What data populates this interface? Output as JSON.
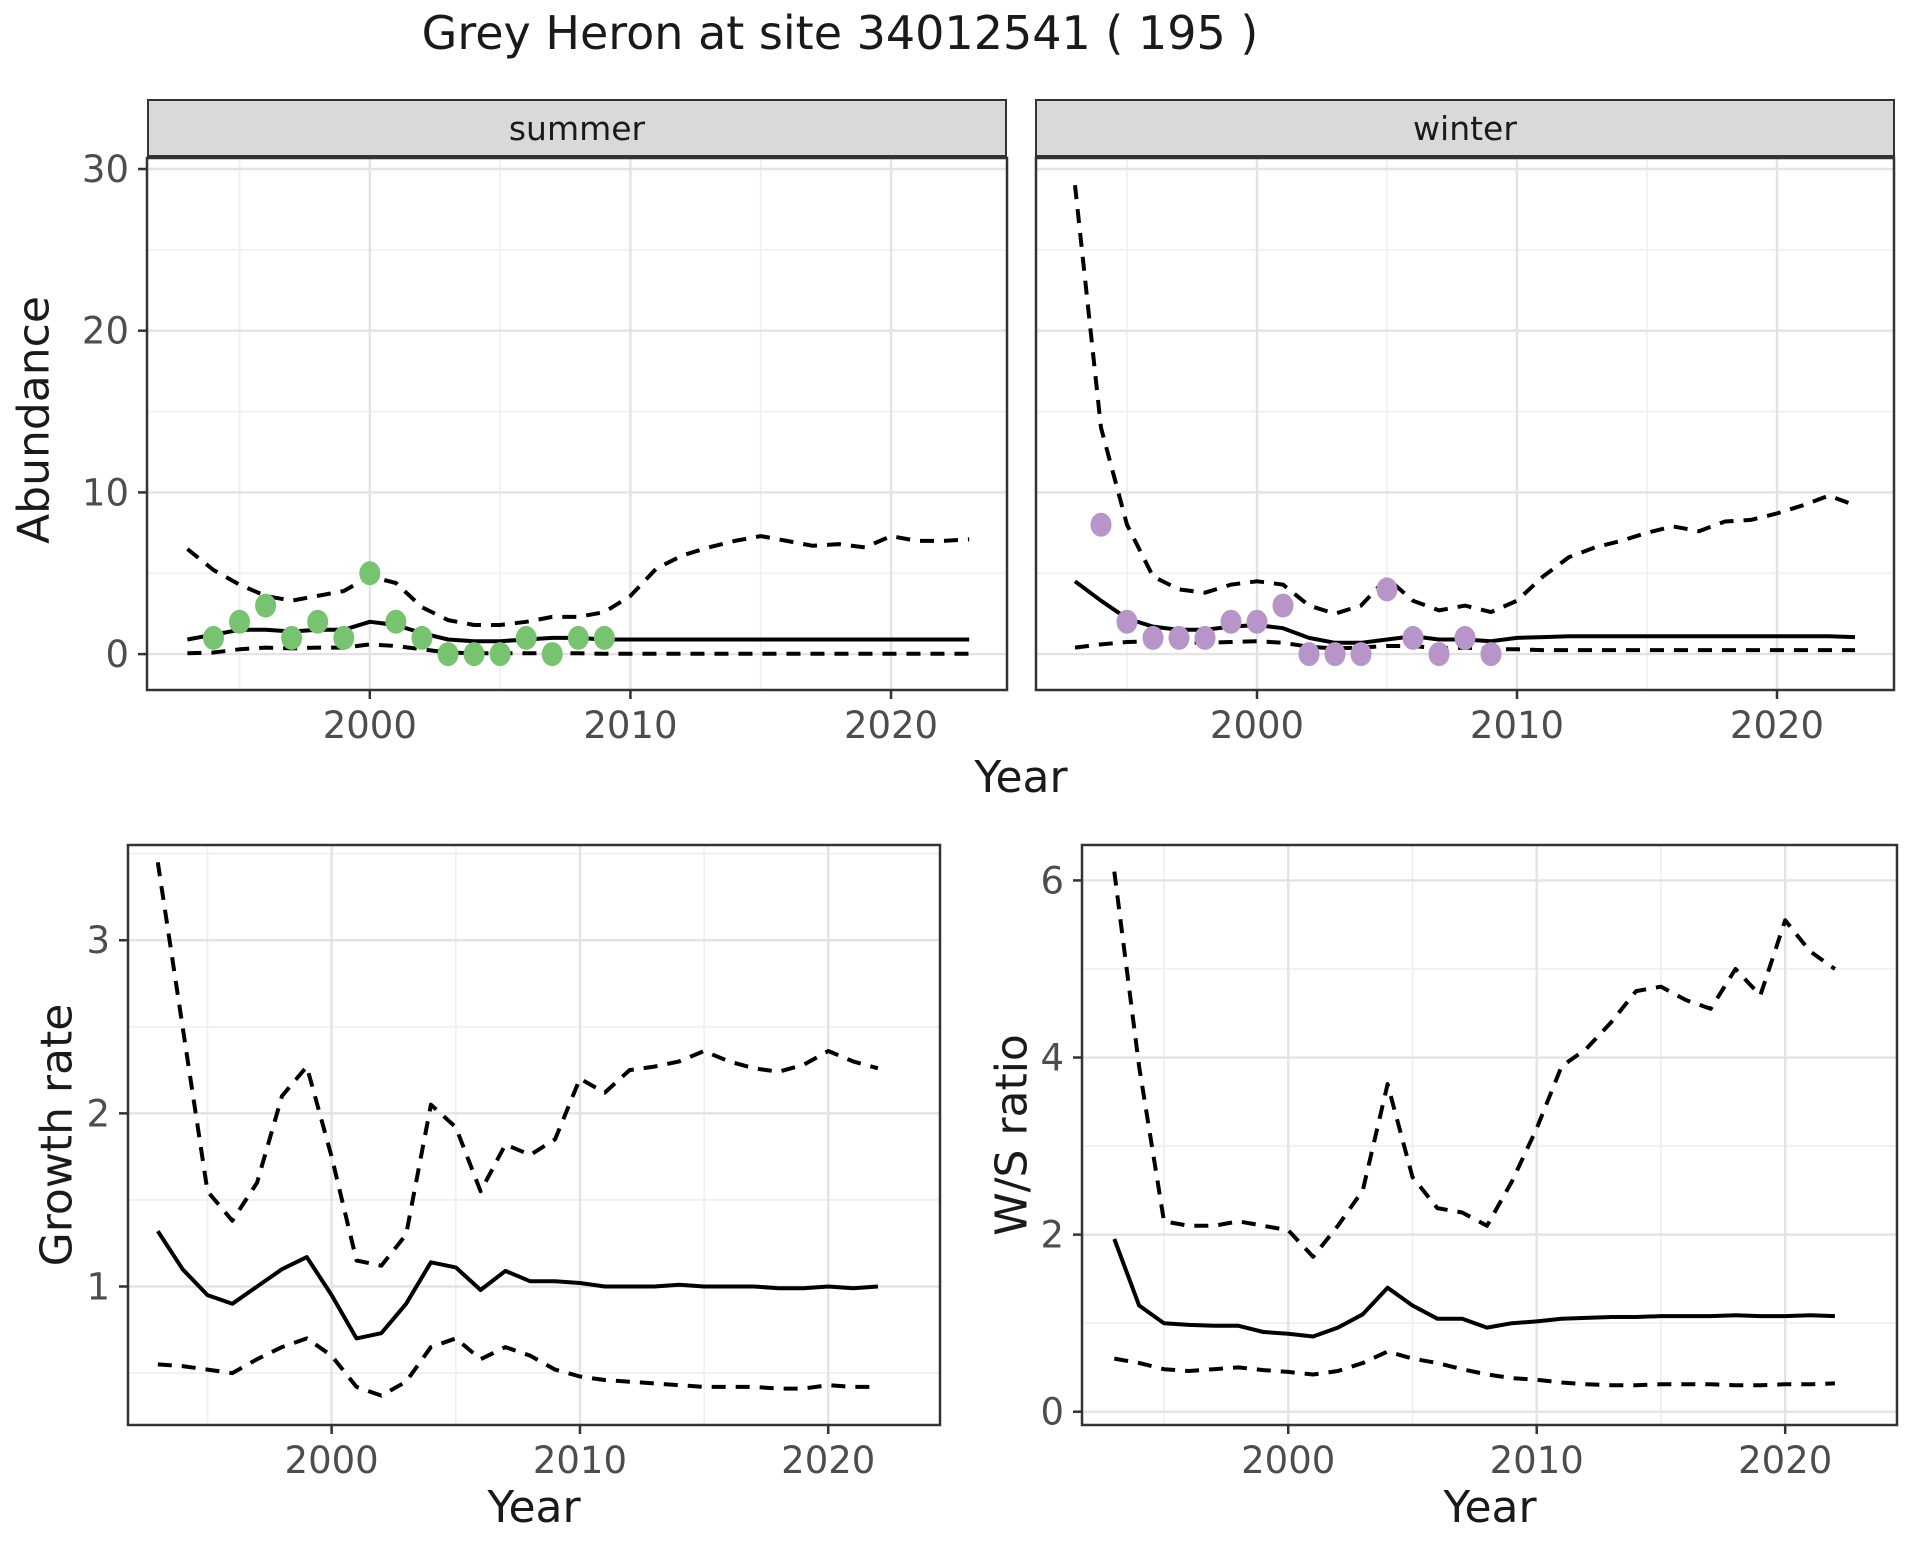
{
  "title": "Grey Heron at site 34012541 ( 195 )",
  "labels": {
    "y_abundance": "Abundance",
    "x_year": "Year",
    "y_growth": "Growth rate",
    "y_ws": "W/S ratio"
  },
  "colors": {
    "line": "#000000",
    "summer_obs": "#78c36f",
    "winter_obs": "#b795c8",
    "strip_bg": "#d9d9d9",
    "panel_border": "#333333",
    "grid_major": "#e3e3e3",
    "grid_minor": "#f0f0f0",
    "tick_text": "#4d4d4d"
  },
  "chart_data": [
    {
      "type": "line",
      "facet_label": "summer",
      "ylabel": "Abundance",
      "xlabel": "Year",
      "x_domain": [
        1991.45,
        2024.45
      ],
      "y_domain": [
        -2.22,
        30.68
      ],
      "x_ticks": [
        2000,
        2010,
        2020
      ],
      "x_minor": [
        1995,
        2005,
        2015
      ],
      "y_ticks": [
        0,
        10,
        20,
        30
      ],
      "y_minor": [
        5,
        15,
        25
      ],
      "x": [
        1993,
        1994,
        1995,
        1996,
        1997,
        1998,
        1999,
        2000,
        2001,
        2002,
        2003,
        2004,
        2005,
        2006,
        2007,
        2008,
        2009,
        2010,
        2011,
        2012,
        2013,
        2014,
        2015,
        2016,
        2017,
        2018,
        2019,
        2020,
        2021,
        2022,
        2023
      ],
      "series": [
        {
          "name": "upper_ci",
          "style": "dashed",
          "values": [
            6.5,
            5.2,
            4.3,
            3.6,
            3.3,
            3.6,
            3.9,
            4.8,
            4.4,
            2.9,
            2.1,
            1.8,
            1.8,
            2.0,
            2.3,
            2.3,
            2.6,
            3.6,
            5.3,
            6.1,
            6.6,
            7.0,
            7.3,
            7.0,
            6.7,
            6.8,
            6.6,
            7.3,
            7.0,
            7.0,
            7.1
          ]
        },
        {
          "name": "lower_ci",
          "style": "dashed",
          "values": [
            0.05,
            0.1,
            0.3,
            0.4,
            0.35,
            0.4,
            0.4,
            0.6,
            0.5,
            0.3,
            0.1,
            0.05,
            0.05,
            0.05,
            0.05,
            0.05,
            0.02,
            0.02,
            0.02,
            0.02,
            0.02,
            0.02,
            0.02,
            0.02,
            0.02,
            0.02,
            0.02,
            0.02,
            0.02,
            0.02,
            0.02
          ]
        },
        {
          "name": "fitted_median",
          "style": "solid",
          "values": [
            0.9,
            1.2,
            1.5,
            1.5,
            1.4,
            1.5,
            1.5,
            2.0,
            1.8,
            1.3,
            0.9,
            0.8,
            0.8,
            0.9,
            1.0,
            1.0,
            0.9,
            0.9,
            0.9,
            0.9,
            0.9,
            0.9,
            0.9,
            0.9,
            0.9,
            0.9,
            0.9,
            0.9,
            0.9,
            0.9,
            0.9
          ]
        }
      ],
      "points": {
        "name": "observed_counts",
        "color_key": "summer_obs",
        "xy": [
          [
            1994,
            1
          ],
          [
            1995,
            2
          ],
          [
            1996,
            3
          ],
          [
            1997,
            1
          ],
          [
            1998,
            2
          ],
          [
            1999,
            1
          ],
          [
            2000,
            5
          ],
          [
            2001,
            2
          ],
          [
            2002,
            1
          ],
          [
            2003,
            0
          ],
          [
            2004,
            0
          ],
          [
            2005,
            0
          ],
          [
            2006,
            1
          ],
          [
            2007,
            0
          ],
          [
            2008,
            1
          ],
          [
            2009,
            1
          ]
        ]
      }
    },
    {
      "type": "line",
      "facet_label": "winter",
      "ylabel": "Abundance",
      "xlabel": "Year",
      "x_domain": [
        1991.5,
        2024.5
      ],
      "y_domain": [
        -2.22,
        30.68
      ],
      "x_ticks": [
        2000,
        2010,
        2020
      ],
      "x_minor": [
        1995,
        2005,
        2015
      ],
      "y_ticks": [
        0,
        10,
        20,
        30
      ],
      "y_minor": [
        5,
        15,
        25
      ],
      "x": [
        1993,
        1994,
        1995,
        1996,
        1997,
        1998,
        1999,
        2000,
        2001,
        2002,
        2003,
        2004,
        2005,
        2006,
        2007,
        2008,
        2009,
        2010,
        2011,
        2012,
        2013,
        2014,
        2015,
        2016,
        2017,
        2018,
        2019,
        2020,
        2021,
        2022,
        2023
      ],
      "series": [
        {
          "name": "upper_ci",
          "style": "dashed",
          "values": [
            29,
            14,
            8,
            4.8,
            4.0,
            3.8,
            4.3,
            4.5,
            4.3,
            3.0,
            2.5,
            3.0,
            4.7,
            3.3,
            2.7,
            3.0,
            2.6,
            3.3,
            4.8,
            6.0,
            6.6,
            7.0,
            7.5,
            7.9,
            7.6,
            8.2,
            8.3,
            8.7,
            9.2,
            9.8,
            9.2
          ]
        },
        {
          "name": "lower_ci",
          "style": "dashed",
          "values": [
            0.4,
            0.6,
            0.75,
            0.8,
            0.75,
            0.7,
            0.75,
            0.8,
            0.7,
            0.45,
            0.35,
            0.4,
            0.5,
            0.5,
            0.35,
            0.4,
            0.3,
            0.3,
            0.25,
            0.25,
            0.25,
            0.25,
            0.25,
            0.25,
            0.25,
            0.25,
            0.25,
            0.25,
            0.25,
            0.25,
            0.25
          ]
        },
        {
          "name": "fitted_median",
          "style": "solid",
          "values": [
            4.5,
            3.3,
            2.2,
            1.7,
            1.5,
            1.5,
            1.7,
            1.8,
            1.6,
            1.0,
            0.7,
            0.7,
            0.9,
            1.1,
            0.9,
            0.9,
            0.8,
            1.0,
            1.05,
            1.1,
            1.1,
            1.1,
            1.1,
            1.1,
            1.1,
            1.1,
            1.1,
            1.1,
            1.1,
            1.1,
            1.05
          ]
        }
      ],
      "points": {
        "name": "observed_counts",
        "color_key": "winter_obs",
        "xy": [
          [
            1994,
            8
          ],
          [
            1995,
            2
          ],
          [
            1996,
            1
          ],
          [
            1997,
            1
          ],
          [
            1998,
            1
          ],
          [
            1999,
            2
          ],
          [
            2000,
            2
          ],
          [
            2001,
            3
          ],
          [
            2002,
            0
          ],
          [
            2003,
            0
          ],
          [
            2004,
            0
          ],
          [
            2005,
            4
          ],
          [
            2006,
            1
          ],
          [
            2007,
            0
          ],
          [
            2008,
            1
          ],
          [
            2009,
            0
          ]
        ]
      }
    },
    {
      "type": "line",
      "facet_label": null,
      "ylabel": "Growth rate",
      "xlabel": "Year",
      "x_domain": [
        1991.8,
        2024.5
      ],
      "y_domain": [
        0.2,
        3.55
      ],
      "x_ticks": [
        2000,
        2010,
        2020
      ],
      "x_minor": [
        1995,
        2005,
        2015
      ],
      "y_ticks": [
        1,
        2,
        3
      ],
      "y_minor": [
        0.5,
        1.5,
        2.5,
        3.5
      ],
      "x": [
        1993,
        1994,
        1995,
        1996,
        1997,
        1998,
        1999,
        2000,
        2001,
        2002,
        2003,
        2004,
        2005,
        2006,
        2007,
        2008,
        2009,
        2010,
        2011,
        2012,
        2013,
        2014,
        2015,
        2016,
        2017,
        2018,
        2019,
        2020,
        2021,
        2022
      ],
      "series": [
        {
          "name": "upper_ci",
          "style": "dashed",
          "values": [
            3.45,
            2.5,
            1.55,
            1.38,
            1.6,
            2.1,
            2.27,
            1.75,
            1.15,
            1.12,
            1.3,
            2.05,
            1.92,
            1.55,
            1.82,
            1.76,
            1.85,
            2.2,
            2.12,
            2.25,
            2.27,
            2.3,
            2.36,
            2.3,
            2.26,
            2.24,
            2.28,
            2.36,
            2.3,
            2.26
          ]
        },
        {
          "name": "lower_ci",
          "style": "dashed",
          "values": [
            0.55,
            0.54,
            0.52,
            0.5,
            0.58,
            0.65,
            0.7,
            0.6,
            0.42,
            0.37,
            0.45,
            0.65,
            0.7,
            0.58,
            0.65,
            0.6,
            0.52,
            0.48,
            0.46,
            0.45,
            0.44,
            0.43,
            0.42,
            0.42,
            0.42,
            0.41,
            0.41,
            0.43,
            0.42,
            0.42
          ]
        },
        {
          "name": "fitted_median",
          "style": "solid",
          "values": [
            1.32,
            1.1,
            0.95,
            0.9,
            1.0,
            1.1,
            1.17,
            0.95,
            0.7,
            0.73,
            0.9,
            1.14,
            1.11,
            0.98,
            1.09,
            1.03,
            1.03,
            1.02,
            1.0,
            1.0,
            1.0,
            1.01,
            1.0,
            1.0,
            1.0,
            0.99,
            0.99,
            1.0,
            0.99,
            1.0
          ]
        }
      ],
      "points": null
    },
    {
      "type": "line",
      "facet_label": null,
      "ylabel": "W/S ratio",
      "xlabel": "Year",
      "x_domain": [
        1991.7,
        2024.5
      ],
      "y_domain": [
        -0.15,
        6.4
      ],
      "x_ticks": [
        2000,
        2010,
        2020
      ],
      "x_minor": [
        1995,
        2005,
        2015
      ],
      "y_ticks": [
        0,
        2,
        4,
        6
      ],
      "y_minor": [
        1,
        3,
        5
      ],
      "x": [
        1993,
        1994,
        1995,
        1996,
        1997,
        1998,
        1999,
        2000,
        2001,
        2002,
        2003,
        2004,
        2005,
        2006,
        2007,
        2008,
        2009,
        2010,
        2011,
        2012,
        2013,
        2014,
        2015,
        2016,
        2017,
        2018,
        2019,
        2020,
        2021,
        2022
      ],
      "series": [
        {
          "name": "upper_ci",
          "style": "dashed",
          "values": [
            6.1,
            3.9,
            2.15,
            2.1,
            2.1,
            2.15,
            2.1,
            2.05,
            1.75,
            2.1,
            2.5,
            3.7,
            2.65,
            2.3,
            2.25,
            2.1,
            2.6,
            3.2,
            3.9,
            4.1,
            4.4,
            4.75,
            4.8,
            4.65,
            4.55,
            5.0,
            4.7,
            5.55,
            5.2,
            5.0
          ]
        },
        {
          "name": "lower_ci",
          "style": "dashed",
          "values": [
            0.6,
            0.55,
            0.48,
            0.46,
            0.48,
            0.5,
            0.47,
            0.45,
            0.42,
            0.46,
            0.55,
            0.68,
            0.6,
            0.55,
            0.48,
            0.42,
            0.38,
            0.36,
            0.33,
            0.31,
            0.3,
            0.3,
            0.31,
            0.31,
            0.31,
            0.3,
            0.3,
            0.31,
            0.31,
            0.32
          ]
        },
        {
          "name": "fitted_median",
          "style": "solid",
          "values": [
            1.95,
            1.2,
            1.0,
            0.98,
            0.97,
            0.97,
            0.9,
            0.88,
            0.85,
            0.95,
            1.1,
            1.4,
            1.2,
            1.05,
            1.05,
            0.95,
            1.0,
            1.02,
            1.05,
            1.06,
            1.07,
            1.07,
            1.08,
            1.08,
            1.08,
            1.09,
            1.08,
            1.08,
            1.09,
            1.08
          ]
        }
      ],
      "points": null
    }
  ]
}
